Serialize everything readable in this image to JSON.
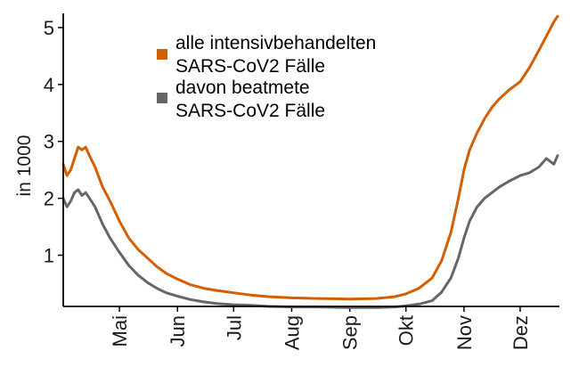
{
  "chart_data": {
    "type": "line",
    "title": "",
    "xlabel": "",
    "ylabel": "in 1000",
    "ylim": [
      0.1,
      5.25
    ],
    "y_ticks": [
      "1",
      "2",
      "3",
      "4",
      "5"
    ],
    "x_ticks": [
      "Mai",
      "Jun",
      "Jul",
      "Aug",
      "Sep",
      "Okt",
      "Nov",
      "Dez"
    ],
    "grid": false,
    "legend_position": "top-center",
    "x": [
      "2020-04-01",
      "2020-04-03",
      "2020-04-05",
      "2020-04-07",
      "2020-04-09",
      "2020-04-11",
      "2020-04-13",
      "2020-04-15",
      "2020-04-18",
      "2020-04-22",
      "2020-04-26",
      "2020-05-01",
      "2020-05-06",
      "2020-05-11",
      "2020-05-16",
      "2020-05-21",
      "2020-05-26",
      "2020-06-01",
      "2020-06-08",
      "2020-06-15",
      "2020-06-22",
      "2020-07-01",
      "2020-07-10",
      "2020-07-20",
      "2020-08-01",
      "2020-08-15",
      "2020-09-01",
      "2020-09-15",
      "2020-09-25",
      "2020-10-01",
      "2020-10-08",
      "2020-10-15",
      "2020-10-20",
      "2020-10-25",
      "2020-10-29",
      "2020-11-01",
      "2020-11-04",
      "2020-11-08",
      "2020-11-12",
      "2020-11-16",
      "2020-11-20",
      "2020-11-25",
      "2020-12-01",
      "2020-12-06",
      "2020-12-11",
      "2020-12-15",
      "2020-12-19",
      "2020-12-21"
    ],
    "series": [
      {
        "name": "alle intensivbehandelten SARS-CoV2 Fälle",
        "color": "#d55e00",
        "values": [
          2.6,
          2.4,
          2.5,
          2.7,
          2.9,
          2.85,
          2.9,
          2.75,
          2.55,
          2.2,
          1.95,
          1.6,
          1.3,
          1.1,
          0.95,
          0.8,
          0.68,
          0.58,
          0.48,
          0.42,
          0.38,
          0.34,
          0.3,
          0.27,
          0.25,
          0.24,
          0.23,
          0.24,
          0.27,
          0.32,
          0.42,
          0.6,
          0.9,
          1.4,
          2.0,
          2.5,
          2.85,
          3.15,
          3.4,
          3.6,
          3.75,
          3.9,
          4.05,
          4.3,
          4.6,
          4.85,
          5.1,
          5.2
        ]
      },
      {
        "name": "davon beatmete SARS-CoV2 Fälle",
        "color": "#666666",
        "values": [
          2.0,
          1.85,
          1.95,
          2.1,
          2.15,
          2.05,
          2.1,
          2.0,
          1.85,
          1.55,
          1.3,
          1.05,
          0.82,
          0.65,
          0.52,
          0.42,
          0.34,
          0.28,
          0.22,
          0.18,
          0.15,
          0.13,
          0.12,
          0.1,
          0.09,
          0.09,
          0.08,
          0.08,
          0.09,
          0.11,
          0.14,
          0.2,
          0.35,
          0.6,
          0.95,
          1.3,
          1.6,
          1.85,
          2.0,
          2.1,
          2.2,
          2.3,
          2.4,
          2.45,
          2.55,
          2.7,
          2.6,
          2.75
        ]
      }
    ]
  }
}
